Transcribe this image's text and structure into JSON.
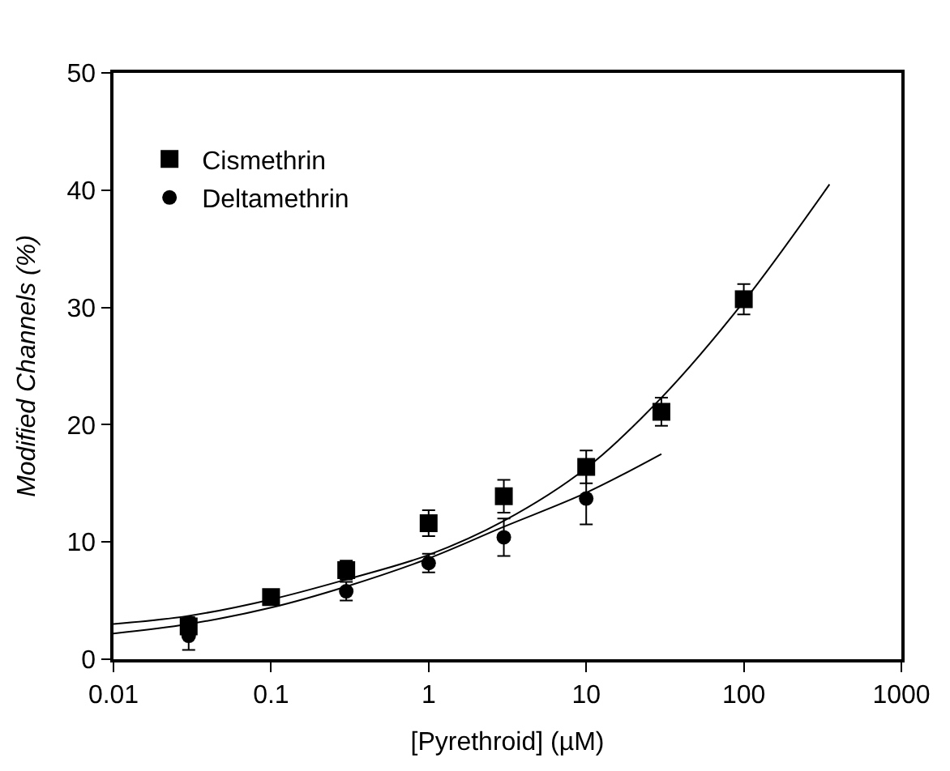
{
  "chart_data": {
    "type": "scatter",
    "xlabel": "[Pyrethroid] (µM)",
    "ylabel": "Modified Channels (%)",
    "log": "x",
    "xlim": [
      0.01,
      1000
    ],
    "ylim": [
      0,
      50
    ],
    "xticks": [
      0.01,
      0.1,
      1,
      10,
      100,
      1000
    ],
    "yticks": [
      0,
      10,
      20,
      30,
      40,
      50
    ],
    "grid": false,
    "legend": "top left",
    "series": [
      {
        "name": "Cismethrin",
        "marker": "square",
        "color": "#000000",
        "x": [
          0.03,
          0.1,
          0.3,
          1,
          3,
          10,
          30,
          100
        ],
        "values": [
          2.8,
          5.3,
          7.6,
          11.6,
          13.9,
          16.4,
          21.1,
          30.7
        ],
        "errors": [
          0.8,
          null,
          0.8,
          1.1,
          1.4,
          1.4,
          1.2,
          1.3
        ]
      },
      {
        "name": "Deltamethrin",
        "marker": "circle",
        "color": "#000000",
        "x": [
          0.03,
          0.3,
          1,
          3,
          10
        ],
        "values": [
          2.0,
          5.8,
          8.2,
          10.4,
          13.7
        ],
        "errors": [
          1.2,
          0.8,
          0.8,
          1.6,
          2.2
        ]
      },
      {
        "type": "line",
        "marker": "none",
        "line_style": "solid",
        "color": "#000000",
        "x": [
          0.01,
          0.03,
          0.1,
          0.3,
          1,
          3,
          10,
          30,
          100,
          350
        ],
        "values": [
          3.0,
          3.7,
          5.1,
          6.8,
          8.9,
          11.8,
          16.3,
          22.3,
          30.5,
          40.5
        ]
      },
      {
        "type": "line",
        "marker": "none",
        "line_style": "solid",
        "color": "#000000",
        "x": [
          0.01,
          0.03,
          0.1,
          0.3,
          1,
          3,
          10,
          30
        ],
        "values": [
          2.2,
          3.0,
          4.4,
          6.2,
          8.6,
          11.3,
          14.2,
          17.5
        ]
      }
    ]
  }
}
